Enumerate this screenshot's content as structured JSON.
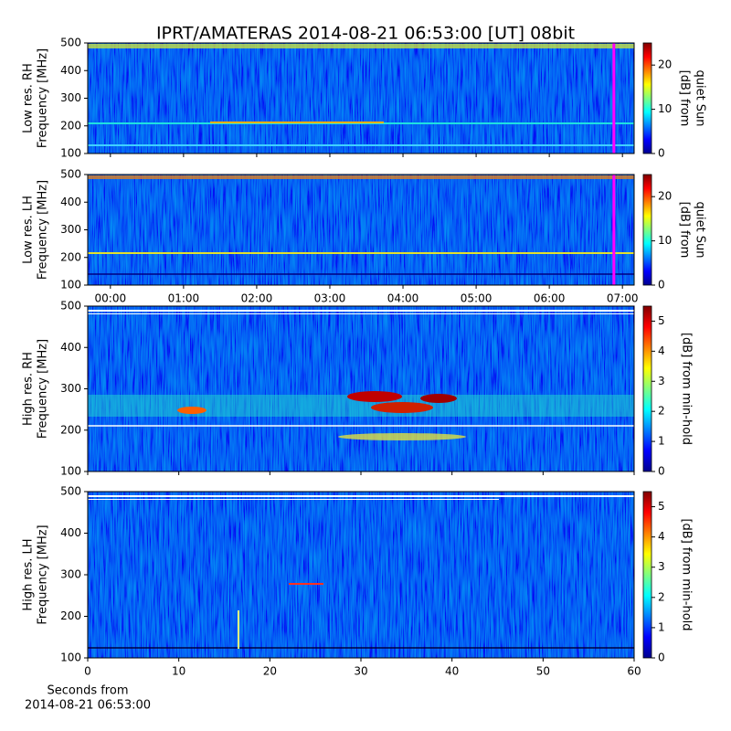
{
  "title": "IPRT/AMATERAS 2014-08-21 06:53:00 [UT]   08bit",
  "chart_data": [
    {
      "type": "heatmap",
      "ylabel": [
        "Low res. RH",
        "Frequency [MHz]"
      ],
      "ylim": [
        100,
        500
      ],
      "yticks": [
        100,
        200,
        300,
        400,
        500
      ],
      "xlim": [
        -0.31,
        7.16
      ],
      "xticks": [
        0,
        1,
        2,
        3,
        4,
        5,
        6,
        7
      ],
      "xticklabels": false,
      "marker_x": 6.883,
      "marker_color": "#ff00ff",
      "colorbar_label": [
        "[dB] from",
        "quiet Sun"
      ],
      "clim": [
        0,
        25
      ],
      "cticks": [
        0,
        10,
        20
      ]
    },
    {
      "type": "heatmap",
      "ylabel": [
        "Low res. LH",
        "Frequency [MHz]"
      ],
      "ylim": [
        100,
        500
      ],
      "yticks": [
        100,
        200,
        300,
        400,
        500
      ],
      "xlim": [
        -0.31,
        7.16
      ],
      "xticks": [
        {
          "value": 0,
          "label": "00:00"
        },
        {
          "value": 1,
          "label": "01:00"
        },
        {
          "value": 2,
          "label": "02:00"
        },
        {
          "value": 3,
          "label": "03:00"
        },
        {
          "value": 4,
          "label": "04:00"
        },
        {
          "value": 5,
          "label": "05:00"
        },
        {
          "value": 6,
          "label": "06:00"
        },
        {
          "value": 7,
          "label": "07:00"
        }
      ],
      "xticklabels": true,
      "marker_x": 6.883,
      "marker_color": "#ff00ff",
      "colorbar_label": [
        "[dB] from",
        "quiet Sun"
      ],
      "clim": [
        0,
        25
      ],
      "cticks": [
        0,
        10,
        20
      ]
    },
    {
      "type": "heatmap",
      "ylabel": [
        "High res. RH",
        "Frequency [MHz]"
      ],
      "ylim": [
        100,
        500
      ],
      "yticks": [
        100,
        200,
        300,
        400,
        500
      ],
      "xlim": [
        0,
        60
      ],
      "xticks": [
        0,
        10,
        20,
        30,
        40,
        50,
        60
      ],
      "xticklabels": false,
      "colorbar_label": [
        "[dB] from min-hold"
      ],
      "clim": [
        0,
        5.5
      ],
      "cticks": [
        0,
        1,
        2,
        3,
        4,
        5
      ]
    },
    {
      "type": "heatmap",
      "ylabel": [
        "High res. LH",
        "Frequency [MHz]"
      ],
      "ylim": [
        100,
        500
      ],
      "yticks": [
        100,
        200,
        300,
        400,
        500
      ],
      "xlim": [
        0,
        60
      ],
      "xticks": [
        0,
        10,
        20,
        30,
        40,
        50,
        60
      ],
      "xticklabels": true,
      "xlabel": [
        "Seconds from",
        "2014-08-21 06:53:00"
      ],
      "colorbar_label": [
        "[dB] from min-hold"
      ],
      "clim": [
        0,
        5.5
      ],
      "cticks": [
        0,
        1,
        2,
        3,
        4,
        5
      ]
    }
  ]
}
